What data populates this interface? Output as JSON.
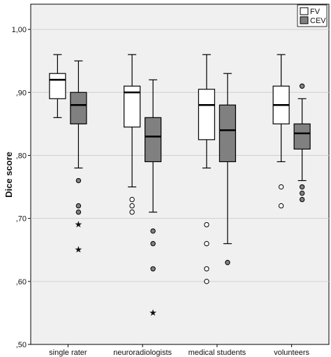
{
  "chart_data": {
    "type": "boxplot",
    "title": "",
    "xlabel": "",
    "ylabel": "Dice score",
    "ylim": [
      0.5,
      1.04
    ],
    "yticks": [
      {
        "value": 0.5,
        "label": ",50"
      },
      {
        "value": 0.6,
        "label": ",60"
      },
      {
        "value": 0.7,
        "label": ",70"
      },
      {
        "value": 0.8,
        "label": ",80"
      },
      {
        "value": 0.9,
        "label": ",90"
      },
      {
        "value": 1.0,
        "label": "1,00"
      }
    ],
    "grid": true,
    "legend_position": "top-right",
    "categories": [
      "single rater",
      "neuroradiologists",
      "medical students",
      "volunteers"
    ],
    "series": [
      {
        "name": "FV",
        "color": "#ffffff",
        "boxes": [
          {
            "whisker_low": 0.86,
            "q1": 0.89,
            "median": 0.92,
            "q3": 0.93,
            "whisker_high": 0.96,
            "outliers": [],
            "extremes": []
          },
          {
            "whisker_low": 0.75,
            "q1": 0.845,
            "median": 0.9,
            "q3": 0.91,
            "whisker_high": 0.96,
            "outliers": [
              0.73,
              0.72,
              0.71
            ],
            "extremes": []
          },
          {
            "whisker_low": 0.78,
            "q1": 0.825,
            "median": 0.88,
            "q3": 0.905,
            "whisker_high": 0.96,
            "outliers": [
              0.69,
              0.66,
              0.62,
              0.6
            ],
            "extremes": []
          },
          {
            "whisker_low": 0.79,
            "q1": 0.85,
            "median": 0.88,
            "q3": 0.91,
            "whisker_high": 0.96,
            "outliers": [
              0.75,
              0.72
            ],
            "extremes": []
          }
        ]
      },
      {
        "name": "CEV",
        "color": "#808080",
        "boxes": [
          {
            "whisker_low": 0.78,
            "q1": 0.85,
            "median": 0.88,
            "q3": 0.9,
            "whisker_high": 0.95,
            "outliers": [
              0.76,
              0.72,
              0.71
            ],
            "extremes": [
              0.69,
              0.65
            ]
          },
          {
            "whisker_low": 0.71,
            "q1": 0.79,
            "median": 0.83,
            "q3": 0.86,
            "whisker_high": 0.92,
            "outliers": [
              0.68,
              0.66,
              0.62
            ],
            "extremes": [
              0.55
            ]
          },
          {
            "whisker_low": 0.66,
            "q1": 0.79,
            "median": 0.84,
            "q3": 0.88,
            "whisker_high": 0.93,
            "outliers": [
              0.63
            ],
            "extremes": []
          },
          {
            "whisker_low": 0.76,
            "q1": 0.81,
            "median": 0.835,
            "q3": 0.85,
            "whisker_high": 0.89,
            "outliers": [
              0.91,
              0.75,
              0.74,
              0.73
            ],
            "extremes": []
          }
        ]
      }
    ]
  }
}
